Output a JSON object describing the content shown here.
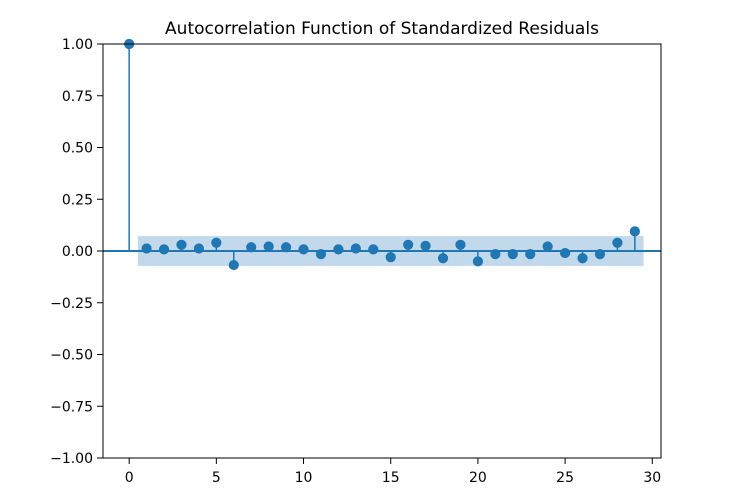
{
  "chart_data": {
    "type": "stem",
    "title": "Autocorrelation Function of Standardized Residuals",
    "xlabel": "",
    "ylabel": "",
    "xlim": [
      -1.5,
      30.5
    ],
    "ylim": [
      -1.0,
      1.0
    ],
    "x_ticks": [
      0,
      5,
      10,
      15,
      20,
      25,
      30
    ],
    "x_tick_labels": [
      "0",
      "5",
      "10",
      "15",
      "20",
      "25",
      "30"
    ],
    "y_ticks": [
      1.0,
      0.75,
      0.5,
      0.25,
      0.0,
      -0.25,
      -0.5,
      -0.75,
      -1.0
    ],
    "y_tick_labels": [
      "1.00",
      "0.75",
      "0.50",
      "0.25",
      "0.00",
      "−0.25",
      "−0.50",
      "−0.75",
      "−1.00"
    ],
    "grid": false,
    "lags": [
      0,
      1,
      2,
      3,
      4,
      5,
      6,
      7,
      8,
      9,
      10,
      11,
      12,
      13,
      14,
      15,
      16,
      17,
      18,
      19,
      20,
      21,
      22,
      23,
      24,
      25,
      26,
      27,
      28,
      29
    ],
    "acf": [
      1.0,
      0.012,
      0.008,
      0.03,
      0.012,
      0.04,
      -0.068,
      0.018,
      0.022,
      0.018,
      0.008,
      -0.015,
      0.008,
      0.012,
      0.008,
      -0.03,
      0.03,
      0.025,
      -0.035,
      0.03,
      -0.05,
      -0.015,
      -0.015,
      -0.015,
      0.022,
      -0.01,
      -0.035,
      -0.015,
      0.04,
      0.095
    ],
    "confidence_band": {
      "x_start": 0.5,
      "x_end": 29.5,
      "upper": 0.072,
      "lower": -0.072
    },
    "colors": {
      "stem": "#1f77b4",
      "confidence_band": "#1f77b4",
      "axes": "#000000"
    }
  }
}
